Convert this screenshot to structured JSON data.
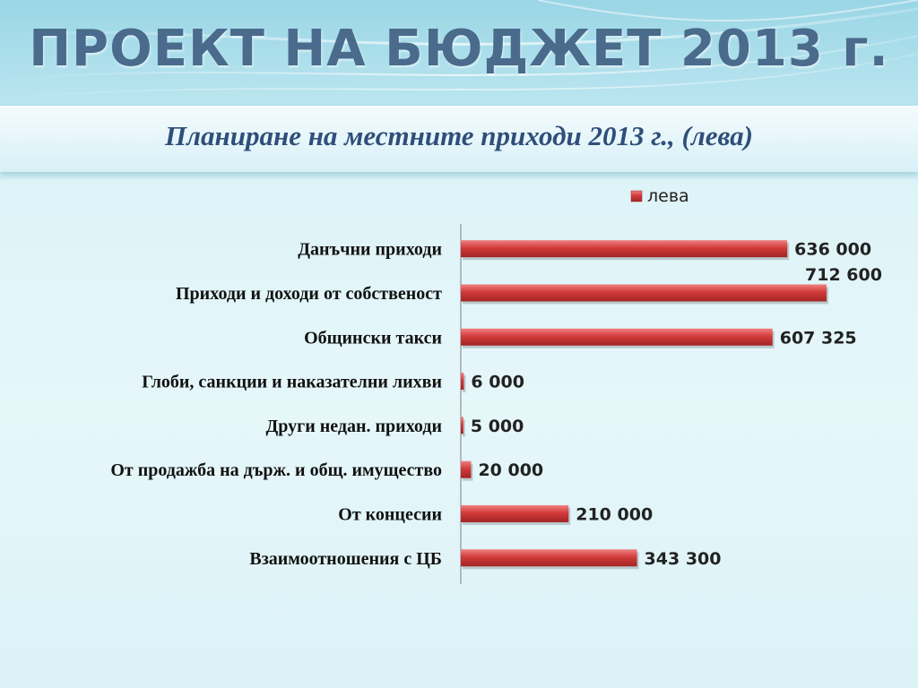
{
  "slide": {
    "title": "ПРОЕКТ НА БЮДЖЕТ 2013 г.",
    "subtitle": "Планиране на местните приходи 2013 г., (лева)"
  },
  "chart_data": {
    "type": "bar",
    "orientation": "horizontal",
    "categories": [
      "Данъчни приходи",
      "Приходи и доходи от собственост",
      "Общински такси",
      "Глоби, санкции и наказателни лихви",
      "Други недан. приходи",
      "От продажба на държ. и общ. имущество",
      "От концесии",
      "Взаимоотношения с ЦБ"
    ],
    "series": [
      {
        "name": "лева",
        "values": [
          636000,
          712600,
          607325,
          6000,
          5000,
          20000,
          210000,
          343300
        ],
        "value_labels": [
          "636 000",
          "712 600",
          "607 325",
          "6 000",
          "5 000",
          "20 000",
          "210 000",
          "343 300"
        ]
      }
    ],
    "legend_position": "top-right",
    "grid": false,
    "xlim": [
      0,
      800000
    ],
    "colors": {
      "bar": "#d23b3b",
      "bar_dark": "#a32424",
      "bar_light": "#f08080"
    }
  }
}
